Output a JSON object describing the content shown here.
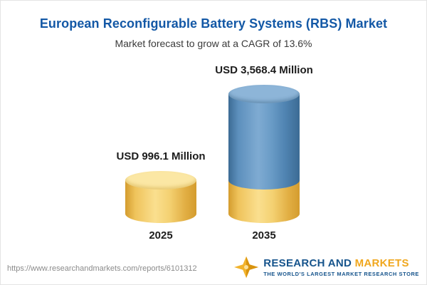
{
  "header": {
    "title": "European Reconfigurable Battery Systems (RBS) Market",
    "subtitle": "Market forecast to grow at a CAGR of 13.6%"
  },
  "chart_data": {
    "type": "bar",
    "subtype": "3d-cylinder",
    "title": "European Reconfigurable Battery Systems (RBS) Market",
    "subtitle": "Market forecast to grow at a CAGR of 13.6%",
    "cagr_percent": 13.6,
    "categories": [
      "2025",
      "2035"
    ],
    "values": [
      996.1,
      3568.4
    ],
    "unit": "USD Million",
    "value_labels": [
      "USD 996.1 Million",
      "USD 3,568.4 Million"
    ],
    "xlabel": "",
    "ylabel": "",
    "legend": "none",
    "grid": false,
    "axes_visible": false,
    "colors": {
      "bar_2025": "#F4D172",
      "bar_2035_top_segment": "#5D90BD",
      "bar_2035_base_segment": "#F4D172",
      "title_text": "#1358A6"
    }
  },
  "footer": {
    "report_url": "https://www.researchandmarkets.com/reports/6101312",
    "logo": {
      "name_part1": "RESEARCH AND",
      "name_part2": "MARKETS",
      "tagline": "THE WORLD'S LARGEST MARKET RESEARCH STORE"
    }
  }
}
